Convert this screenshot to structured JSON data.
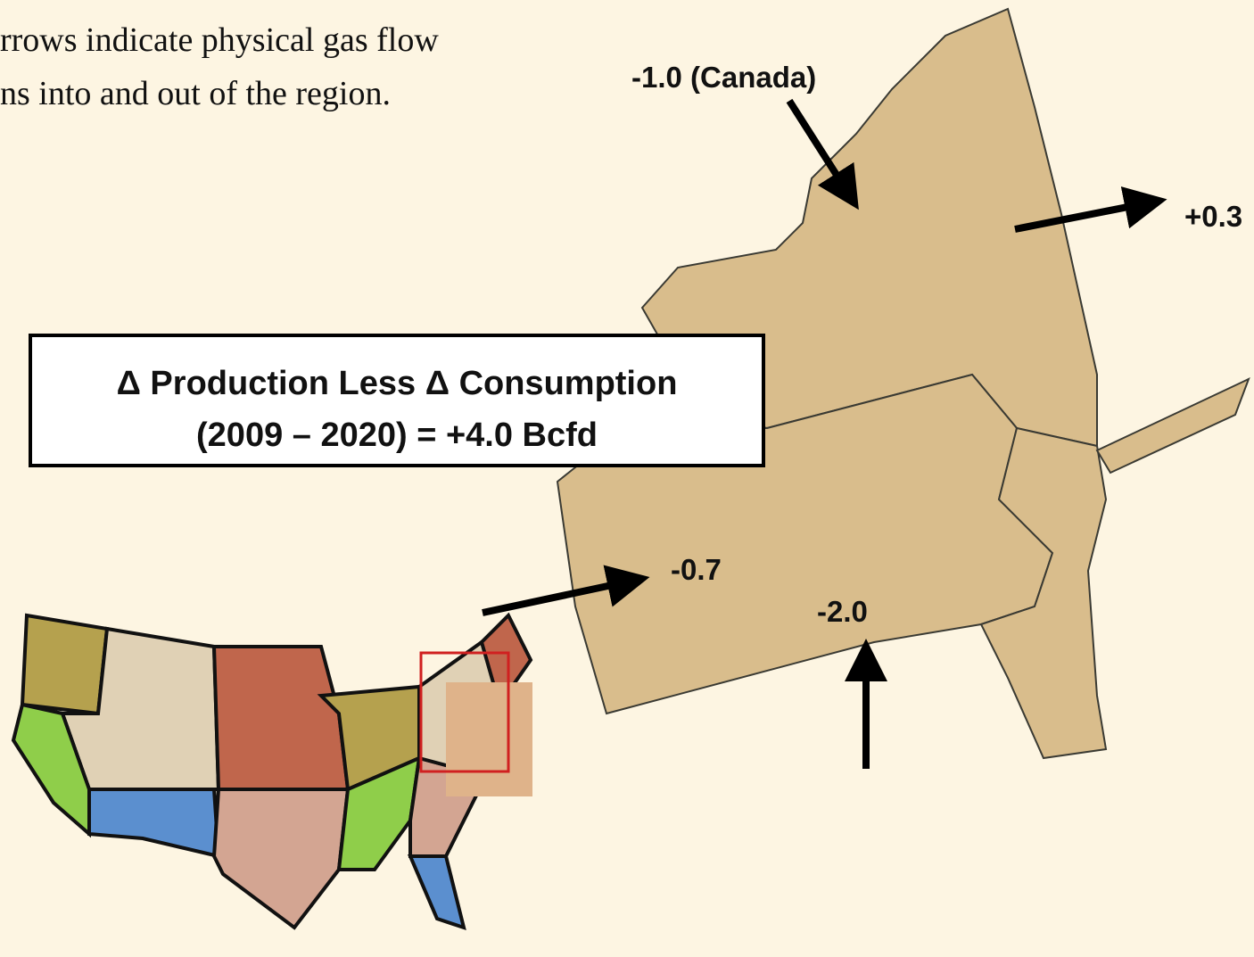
{
  "caption": {
    "lines": [
      "rrows indicate physical gas flow",
      "ns into and out of the region."
    ]
  },
  "flows": [
    {
      "label": "-1.0 (Canada)"
    },
    {
      "label": "+0.3"
    },
    {
      "label": "-0.7"
    },
    {
      "label": "-2.0"
    }
  ],
  "summary_box": {
    "lines": [
      "Δ Production Less Δ Consumption",
      "(2009 – 2020) = +4.0 Bcfd"
    ]
  }
}
